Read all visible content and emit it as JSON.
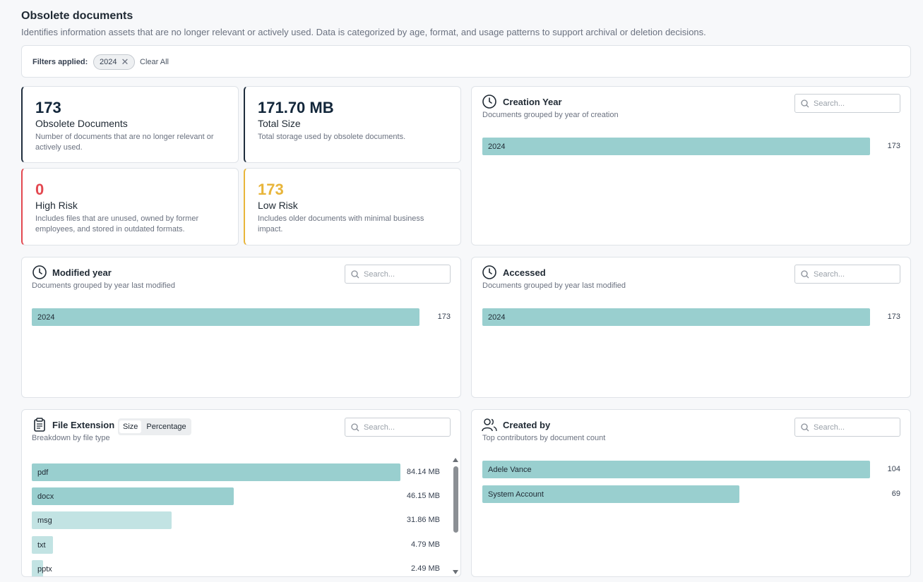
{
  "page": {
    "title": "Obsolete documents",
    "description": "Identifies information assets that are no longer relevant or actively used. Data is categorized by age, format, and usage patterns to support archival or deletion decisions."
  },
  "filters": {
    "label": "Filters applied:",
    "chips": [
      "2024"
    ],
    "clear_all": "Clear All"
  },
  "kpis": {
    "obsolete": {
      "value": "173",
      "label": "Obsolete Documents",
      "description": "Number of documents that are no longer relevant or actively used."
    },
    "total_size": {
      "value": "171.70 MB",
      "label": "Total Size",
      "description": "Total storage used by obsolete documents."
    },
    "high_risk": {
      "value": "0",
      "label": "High Risk",
      "description": "Includes files that are unused, owned by former employees, and stored in outdated formats."
    },
    "low_risk": {
      "value": "173",
      "label": "Low Risk",
      "description": "Includes older documents with minimal business impact."
    }
  },
  "panels": {
    "creation_year": {
      "title": "Creation Year",
      "subtitle": "Documents grouped by year of creation",
      "search_placeholder": "Search...",
      "rows": [
        {
          "label": "2024",
          "value": 173,
          "display": "173"
        }
      ]
    },
    "modified_year": {
      "title": "Modified year",
      "subtitle": "Documents grouped by year last modified",
      "search_placeholder": "Search...",
      "rows": [
        {
          "label": "2024",
          "value": 173,
          "display": "173"
        }
      ]
    },
    "accessed": {
      "title": "Accessed",
      "subtitle": "Documents grouped by year last modified",
      "search_placeholder": "Search...",
      "rows": [
        {
          "label": "2024",
          "value": 173,
          "display": "173"
        }
      ]
    },
    "file_extension": {
      "title": "File Extension",
      "subtitle": "Breakdown by file type",
      "search_placeholder": "Search...",
      "toggle": {
        "size": "Size",
        "percentage": "Percentage",
        "active": "size"
      },
      "rows": [
        {
          "label": "pdf",
          "value": 84.14,
          "display": "84.14 MB"
        },
        {
          "label": "docx",
          "value": 46.15,
          "display": "46.15 MB"
        },
        {
          "label": "msg",
          "value": 31.86,
          "display": "31.86 MB"
        },
        {
          "label": "txt",
          "value": 4.79,
          "display": "4.79 MB"
        },
        {
          "label": "pptx",
          "value": 2.49,
          "display": "2.49 MB"
        }
      ]
    },
    "created_by": {
      "title": "Created by",
      "subtitle": "Top contributors by document count",
      "search_placeholder": "Search...",
      "rows": [
        {
          "label": "Adele Vance",
          "value": 104,
          "display": "104"
        },
        {
          "label": "System Account",
          "value": 69,
          "display": "69"
        }
      ]
    }
  },
  "colors": {
    "bar_primary": "#99cfcf",
    "bar_light": "#c2e3e3",
    "accent_dark": "#1f2d3d",
    "risk_high": "#e34850",
    "risk_low": "#e8b53a"
  }
}
